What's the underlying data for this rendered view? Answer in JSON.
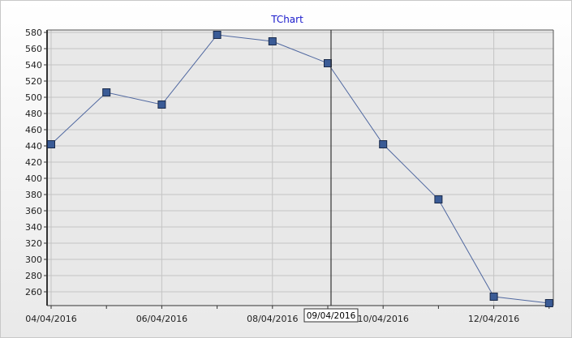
{
  "chart_data": {
    "type": "line",
    "title": "TChart",
    "x": [
      "04/04/2016",
      "05/04/2016",
      "06/04/2016",
      "07/04/2016",
      "08/04/2016",
      "09/04/2016",
      "10/04/2016",
      "11/04/2016",
      "12/04/2016",
      "13/04/2016"
    ],
    "series": [
      {
        "values": [
          442,
          506,
          491,
          577,
          569,
          542,
          442,
          374,
          254,
          246
        ]
      }
    ],
    "x_tick_labels": [
      "04/04/2016",
      "06/04/2016",
      "08/04/2016",
      "10/04/2016",
      "12/04/2016"
    ],
    "ylim": [
      243,
      583
    ],
    "y_ticks": [
      260,
      280,
      300,
      320,
      340,
      360,
      380,
      400,
      420,
      440,
      460,
      480,
      500,
      520,
      540,
      560,
      580
    ],
    "cursor_label": "09/04/2016",
    "grid": true,
    "colors": {
      "line": "#5068a0",
      "marker_fill": "#3a5b96",
      "marker_stroke": "#1a2a4a",
      "title": "#1a1acc"
    }
  }
}
